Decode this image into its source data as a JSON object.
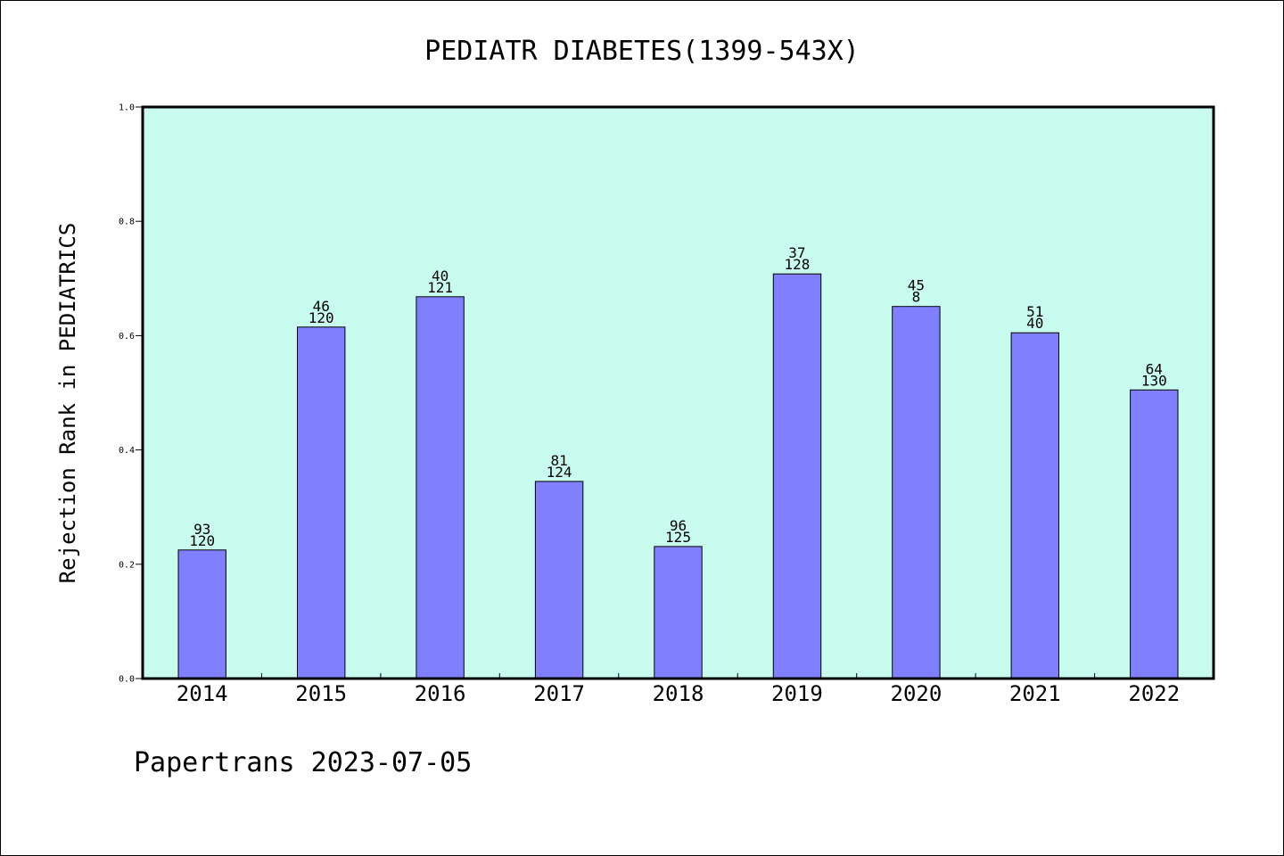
{
  "chart_data": {
    "type": "bar",
    "title": "PEDIATR DIABETES(1399-543X)",
    "xlabel": "",
    "ylabel": "Rejection Rank in PEDIATRICS",
    "categories": [
      "2014",
      "2015",
      "2016",
      "2017",
      "2018",
      "2019",
      "2020",
      "2021",
      "2022"
    ],
    "values": [
      0.225,
      0.615,
      0.668,
      0.345,
      0.231,
      0.708,
      0.651,
      0.605,
      0.505
    ],
    "bar_labels_top": [
      "93",
      "46",
      "40",
      "81",
      "96",
      "37",
      "45",
      "51",
      "64"
    ],
    "bar_labels_bottom": [
      "120",
      "120",
      "121",
      "124",
      "125",
      "128",
      "8",
      "40",
      "130"
    ],
    "ylim": [
      0,
      1.0
    ],
    "yticks": [
      "0.0",
      "0.2",
      "0.4",
      "0.6",
      "0.8",
      "1.0"
    ],
    "grid": false,
    "colors": {
      "bar": "#8080ff",
      "plot_background": "#c8fcee"
    }
  },
  "footer": {
    "text": "Papertrans 2023-07-05"
  }
}
